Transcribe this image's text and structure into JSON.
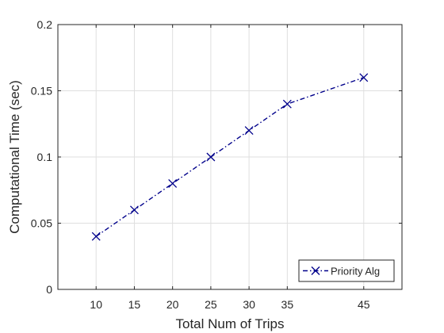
{
  "chart_data": {
    "type": "line",
    "xlabel": "Total Num of Trips",
    "ylabel": "Computational Time (sec)",
    "xlim": [
      5,
      50
    ],
    "ylim": [
      0,
      0.2
    ],
    "x_ticks": [
      10,
      15,
      20,
      25,
      30,
      35,
      45
    ],
    "x_tick_labels": [
      "10",
      "15",
      "20",
      "25",
      "30",
      "35",
      "45"
    ],
    "y_ticks": [
      0,
      0.05,
      0.1,
      0.15,
      0.2
    ],
    "y_tick_labels": [
      "0",
      "0.05",
      "0.1",
      "0.15",
      "0.2"
    ],
    "grid": true,
    "legend_position": "bottom-right",
    "series": [
      {
        "name": "Priority Alg",
        "x": [
          10,
          15,
          20,
          25,
          30,
          35,
          45
        ],
        "y": [
          0.04,
          0.06,
          0.08,
          0.1,
          0.12,
          0.14,
          0.16
        ],
        "color": "#00008b",
        "line_style": "dash-dot",
        "marker": "x"
      }
    ]
  }
}
